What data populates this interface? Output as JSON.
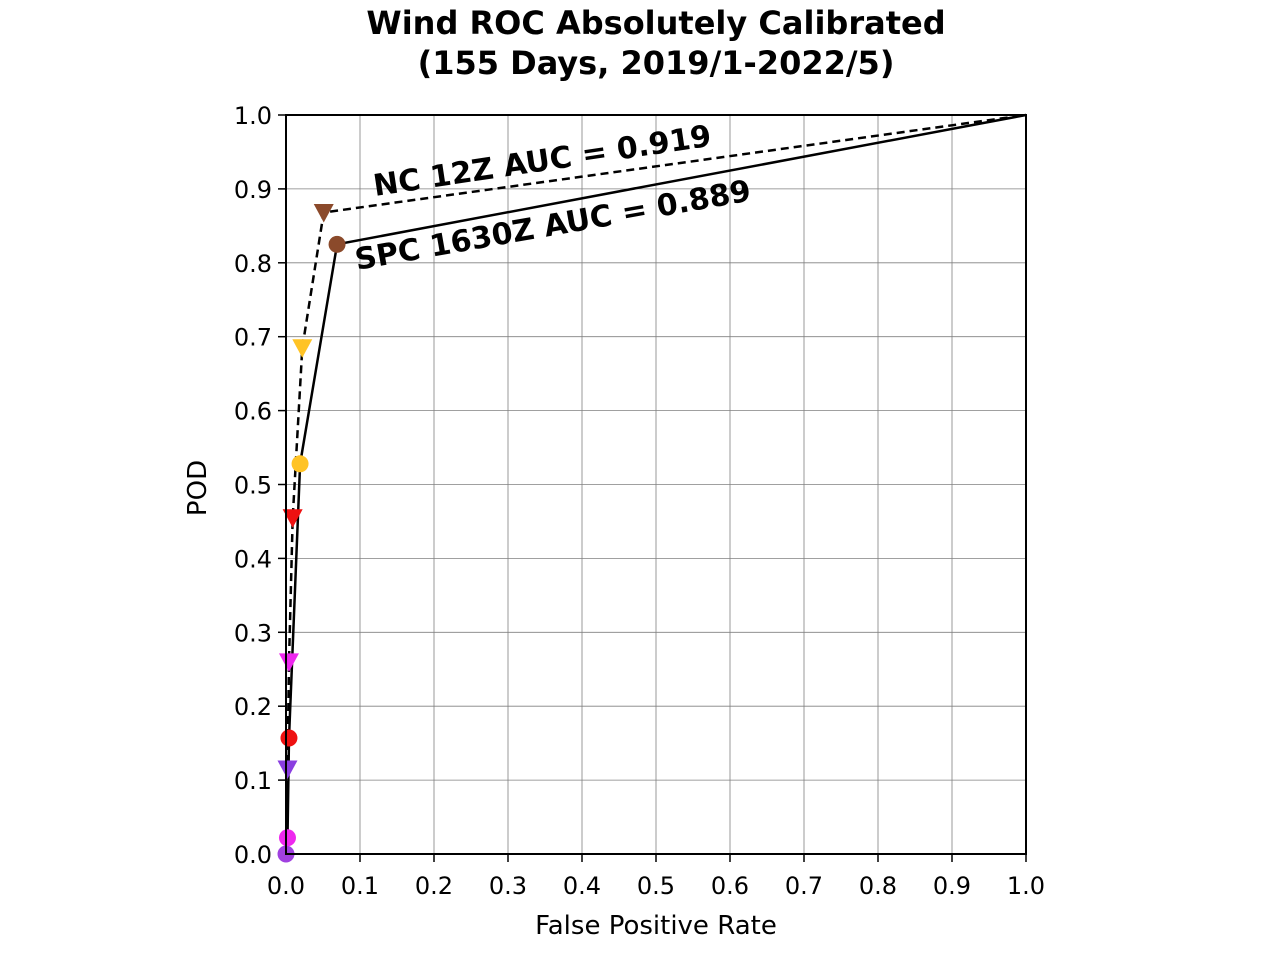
{
  "chart_data": {
    "type": "line",
    "title_lines": [
      "Wind ROC Absolutely Calibrated",
      "(155 Days, 2019/1-2022/5)"
    ],
    "xlabel": "False Positive Rate",
    "ylabel": "POD",
    "xlim": [
      0.0,
      1.0
    ],
    "ylim": [
      0.0,
      1.0
    ],
    "x_ticks": [
      "0.0",
      "0.1",
      "0.2",
      "0.3",
      "0.4",
      "0.5",
      "0.6",
      "0.7",
      "0.8",
      "0.9",
      "1.0"
    ],
    "y_ticks": [
      "0.0",
      "0.1",
      "0.2",
      "0.3",
      "0.4",
      "0.5",
      "0.6",
      "0.7",
      "0.8",
      "0.9",
      "1.0"
    ],
    "grid": true,
    "series": [
      {
        "name": "NC 12Z",
        "line_style": "dashed",
        "marker": "triangle-down",
        "points": [
          {
            "x": 0.0,
            "y": 0.0,
            "color": "#000000",
            "marker": false
          },
          {
            "x": 0.002,
            "y": 0.115,
            "color": "#8a3ee0",
            "marker": true
          },
          {
            "x": 0.004,
            "y": 0.26,
            "color": "#ee28ee",
            "marker": true
          },
          {
            "x": 0.009,
            "y": 0.455,
            "color": "#ee1111",
            "marker": true
          },
          {
            "x": 0.022,
            "y": 0.685,
            "color": "#ffc325",
            "marker": true
          },
          {
            "x": 0.051,
            "y": 0.868,
            "color": "#8b4a2b",
            "marker": true
          },
          {
            "x": 1.0,
            "y": 1.0,
            "color": "#000000",
            "marker": false
          }
        ],
        "annotation": "NC 12Z AUC = 0.919"
      },
      {
        "name": "SPC 1630Z",
        "line_style": "solid",
        "marker": "circle",
        "points": [
          {
            "x": 0.0,
            "y": 0.0,
            "color": "#000000",
            "marker": false
          },
          {
            "x": 0.0,
            "y": 0.0,
            "color": "#a040e0",
            "marker": true
          },
          {
            "x": 0.002,
            "y": 0.022,
            "color": "#ee28ee",
            "marker": true
          },
          {
            "x": 0.004,
            "y": 0.157,
            "color": "#ee1111",
            "marker": true
          },
          {
            "x": 0.019,
            "y": 0.528,
            "color": "#ffc325",
            "marker": true
          },
          {
            "x": 0.069,
            "y": 0.825,
            "color": "#8b4a2b",
            "marker": true
          },
          {
            "x": 1.0,
            "y": 1.0,
            "color": "#000000",
            "marker": false
          }
        ],
        "annotation": "SPC 1630Z AUC = 0.889"
      }
    ]
  }
}
